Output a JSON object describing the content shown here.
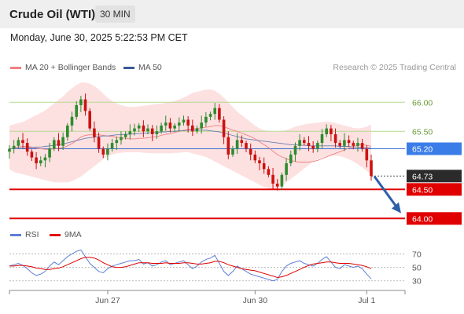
{
  "header": {
    "instrument": "Crude Oil (WTI)",
    "timeframe": "30 MIN"
  },
  "timestamp": "Monday, June 30, 2025 5:22:53 PM CET",
  "credit": "Research © 2025 Trading Central",
  "legend": {
    "bb": {
      "label": "MA 20 + Bollinger Bands",
      "color": "#f08080"
    },
    "ma50": {
      "label": "MA 50",
      "color": "#3a5a9a"
    }
  },
  "rsi_legend": {
    "rsi": {
      "label": "RSI",
      "color": "#5b7fd6"
    },
    "ma9": {
      "label": "9MA",
      "color": "#e00000"
    }
  },
  "colors": {
    "up": "#2e8b2e",
    "down": "#cc1111",
    "band_fill": "#fde1e1",
    "green_line": "#b8d890",
    "red_line": "#e00000",
    "blue_line": "#3b6fd0"
  },
  "chart_data": [
    {
      "type": "candlestick",
      "x_tick_labels": [
        "Jun 27",
        "Jun 30",
        "Jul 1"
      ],
      "ylim": [
        63.95,
        66.45
      ],
      "price_levels": [
        {
          "label": "66.00",
          "value": 66.0,
          "style": "green-line"
        },
        {
          "label": "65.50",
          "value": 65.5,
          "style": "green-line"
        },
        {
          "label": "65.20",
          "value": 65.2,
          "style": "blue-line"
        },
        {
          "label": "64.73",
          "value": 64.73,
          "style": "current-price"
        },
        {
          "label": "64.50",
          "value": 64.5,
          "style": "red-line"
        },
        {
          "label": "64.00",
          "value": 64.0,
          "style": "red-line"
        }
      ],
      "forecast_arrow": {
        "from": 64.78,
        "to": 64.05
      },
      "close": [
        65.2,
        65.25,
        65.35,
        65.3,
        65.15,
        65.05,
        64.95,
        65.0,
        65.05,
        65.2,
        65.35,
        65.25,
        65.4,
        65.6,
        65.75,
        65.95,
        66.05,
        65.85,
        65.55,
        65.4,
        65.2,
        65.1,
        65.2,
        65.3,
        65.35,
        65.4,
        65.45,
        65.5,
        65.55,
        65.6,
        65.5,
        65.55,
        65.45,
        65.5,
        65.6,
        65.65,
        65.55,
        65.6,
        65.65,
        65.7,
        65.6,
        65.5,
        65.55,
        65.65,
        65.75,
        65.8,
        65.9,
        65.7,
        65.4,
        65.1,
        65.2,
        65.35,
        65.3,
        65.2,
        65.1,
        65.0,
        64.95,
        64.85,
        64.75,
        64.6,
        64.55,
        64.75,
        64.95,
        65.1,
        65.25,
        65.35,
        65.3,
        65.25,
        65.2,
        65.3,
        65.45,
        65.55,
        65.45,
        65.3,
        65.25,
        65.35,
        65.3,
        65.25,
        65.3,
        65.2,
        65.0,
        64.73
      ],
      "ma20": [
        65.2,
        65.21,
        65.23,
        65.24,
        65.24,
        65.23,
        65.21,
        65.2,
        65.19,
        65.19,
        65.2,
        65.21,
        65.22,
        65.25,
        65.29,
        65.34,
        65.4,
        65.43,
        65.44,
        65.44,
        65.44,
        65.43,
        65.42,
        65.41,
        65.4,
        65.39,
        65.38,
        65.37,
        65.37,
        65.38,
        65.38,
        65.39,
        65.4,
        65.41,
        65.43,
        65.45,
        65.46,
        65.48,
        65.5,
        65.52,
        65.53,
        65.54,
        65.55,
        65.56,
        65.57,
        65.58,
        65.6,
        65.6,
        65.58,
        65.55,
        65.52,
        65.5,
        65.47,
        65.44,
        65.41,
        65.37,
        65.32,
        65.27,
        65.22,
        65.16,
        65.1,
        65.06,
        65.03,
        65.0,
        64.98,
        64.97,
        64.97,
        64.97,
        64.98,
        65.0,
        65.03,
        65.06,
        65.09,
        65.12,
        65.15,
        65.18,
        65.21,
        65.24,
        65.26,
        65.27,
        65.26,
        65.24
      ],
      "bb_upper": [
        65.6,
        65.62,
        65.64,
        65.66,
        65.7,
        65.74,
        65.78,
        65.82,
        65.86,
        65.92,
        65.98,
        66.04,
        66.1,
        66.18,
        66.24,
        66.3,
        66.34,
        66.34,
        66.32,
        66.28,
        66.22,
        66.15,
        66.08,
        66.02,
        65.98,
        65.95,
        65.93,
        65.92,
        65.92,
        65.93,
        65.94,
        65.95,
        65.96,
        65.97,
        65.98,
        65.99,
        66.0,
        66.02,
        66.05,
        66.08,
        66.12,
        66.16,
        66.18,
        66.2,
        66.22,
        66.22,
        66.2,
        66.15,
        66.08,
        66.0,
        65.92,
        65.84,
        65.78,
        65.72,
        65.66,
        65.6,
        65.55,
        65.52,
        65.5,
        65.49,
        65.49,
        65.5,
        65.52,
        65.55,
        65.58,
        65.6,
        65.62,
        65.63,
        65.64,
        65.65,
        65.66,
        65.67,
        65.66,
        65.64,
        65.62,
        65.6,
        65.58,
        65.56,
        65.55,
        65.56,
        65.58,
        65.62
      ],
      "bb_lower": [
        64.85,
        64.8,
        64.78,
        64.76,
        64.74,
        64.72,
        64.7,
        64.68,
        64.66,
        64.64,
        64.62,
        64.62,
        64.62,
        64.62,
        64.64,
        64.68,
        64.72,
        64.78,
        64.84,
        64.9,
        64.96,
        65.02,
        65.06,
        65.1,
        65.12,
        65.13,
        65.14,
        65.14,
        65.14,
        65.14,
        65.13,
        65.13,
        65.12,
        65.12,
        65.12,
        65.12,
        65.12,
        65.13,
        65.13,
        65.14,
        65.14,
        65.12,
        65.1,
        65.08,
        65.06,
        65.02,
        64.98,
        64.94,
        64.9,
        64.86,
        64.82,
        64.78,
        64.74,
        64.7,
        64.66,
        64.62,
        64.58,
        64.54,
        64.52,
        64.5,
        64.52,
        64.56,
        64.62,
        64.68,
        64.74,
        64.8,
        64.86,
        64.92,
        64.98,
        65.02,
        65.05,
        65.07,
        65.08,
        65.08,
        65.07,
        65.05,
        65.02,
        64.98,
        64.93,
        64.88,
        64.82,
        64.76
      ],
      "ma50": [
        65.2,
        65.2,
        65.21,
        65.21,
        65.22,
        65.22,
        65.23,
        65.23,
        65.24,
        65.25,
        65.26,
        65.27,
        65.28,
        65.3,
        65.32,
        65.34,
        65.36,
        65.38,
        65.39,
        65.4,
        65.41,
        65.42,
        65.42,
        65.43,
        65.44,
        65.44,
        65.45,
        65.45,
        65.46,
        65.46,
        65.47,
        65.47,
        65.48,
        65.48,
        65.49,
        65.49,
        65.5,
        65.5,
        65.51,
        65.51,
        65.52,
        65.52,
        65.52,
        65.52,
        65.52,
        65.51,
        65.5,
        65.49,
        65.47,
        65.45,
        65.43,
        65.41,
        65.39,
        65.37,
        65.36,
        65.35,
        65.34,
        65.33,
        65.32,
        65.31,
        65.3,
        65.29,
        65.28,
        65.27,
        65.27,
        65.26,
        65.26,
        65.25,
        65.25,
        65.25,
        65.25,
        65.25,
        65.25,
        65.25,
        65.24,
        65.24,
        65.24,
        65.23,
        65.23,
        65.22,
        65.22,
        65.21
      ]
    },
    {
      "type": "line",
      "title": "RSI",
      "y_ticks": [
        "70",
        "50",
        "30"
      ],
      "ylim": [
        25,
        80
      ],
      "series": [
        {
          "name": "RSI",
          "values": [
            52,
            54,
            56,
            53,
            48,
            42,
            38,
            40,
            44,
            52,
            58,
            54,
            60,
            66,
            70,
            74,
            76,
            66,
            56,
            50,
            44,
            42,
            48,
            52,
            54,
            56,
            58,
            60,
            60,
            62,
            55,
            57,
            52,
            54,
            58,
            60,
            54,
            56,
            58,
            60,
            54,
            48,
            52,
            58,
            62,
            64,
            68,
            56,
            44,
            38,
            44,
            52,
            48,
            44,
            40,
            38,
            36,
            34,
            32,
            30,
            32,
            44,
            52,
            56,
            58,
            60,
            56,
            54,
            52,
            56,
            62,
            66,
            58,
            50,
            48,
            54,
            52,
            50,
            52,
            48,
            40,
            33
          ]
        },
        {
          "name": "9MA",
          "values": [
            52,
            52,
            53,
            53,
            52,
            51,
            49,
            48,
            47,
            47,
            48,
            49,
            51,
            54,
            57,
            60,
            63,
            65,
            65,
            64,
            61,
            57,
            54,
            51,
            50,
            50,
            51,
            53,
            55,
            57,
            57,
            57,
            56,
            56,
            56,
            57,
            56,
            56,
            56,
            57,
            57,
            56,
            55,
            55,
            56,
            57,
            59,
            59,
            57,
            54,
            52,
            50,
            48,
            47,
            46,
            45,
            43,
            41,
            39,
            37,
            35,
            36,
            38,
            41,
            44,
            47,
            50,
            53,
            55,
            56,
            57,
            58,
            58,
            57,
            56,
            56,
            56,
            55,
            54,
            53,
            51,
            48
          ]
        }
      ]
    }
  ]
}
